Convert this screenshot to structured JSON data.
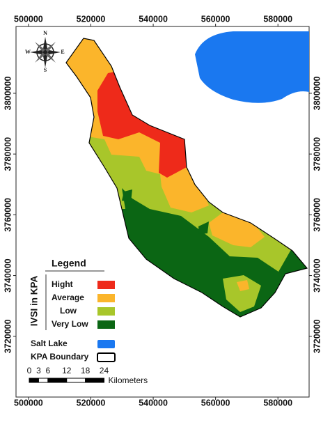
{
  "map": {
    "xlim": [
      496000,
      590000
    ],
    "ylim": [
      3700000,
      3822000
    ],
    "xticks": [
      500000,
      520000,
      540000,
      560000,
      580000
    ],
    "yticks": [
      3720000,
      3740000,
      3760000,
      3780000,
      3800000
    ],
    "legend": {
      "title": "Legend",
      "group_label": "IVSI in KPA",
      "classes": [
        {
          "label": "Hight",
          "color": "#ee2a1a"
        },
        {
          "label": "Average",
          "color": "#fbb52b"
        },
        {
          "label": "Low",
          "color": "#a8c62a"
        },
        {
          "label": "Very Low",
          "color": "#0b6614"
        }
      ],
      "features": [
        {
          "label": "Salt Lake",
          "color": "#1a78f0"
        },
        {
          "label": "KPA Boundary",
          "color": "#ffffff"
        }
      ]
    },
    "scale_bar": {
      "ticks": [
        0,
        3,
        6,
        12,
        18,
        24
      ],
      "unit": "Kilometers"
    },
    "compass": {
      "north": "N",
      "south": "S",
      "east": "E",
      "west": "W"
    }
  }
}
